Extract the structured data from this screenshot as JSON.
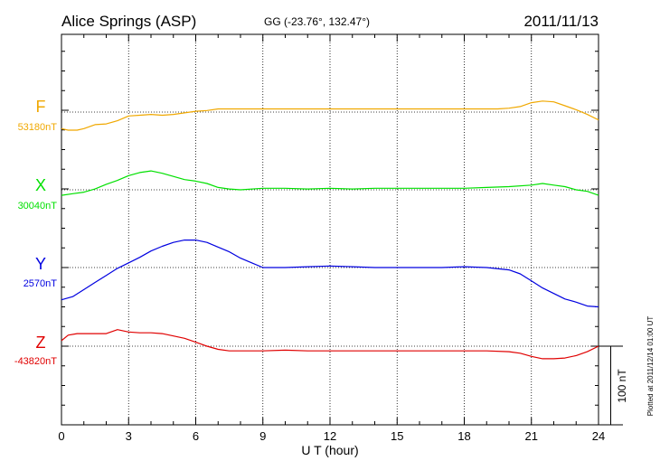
{
  "header": {
    "station": "Alice Springs (ASP)",
    "coords": "GG (-23.76°, 132.47°)",
    "date": "2011/11/13"
  },
  "footer": {
    "plotted": "Plotted at 2011/12/14 01:00 UT"
  },
  "chart_data": {
    "type": "line",
    "title": "Alice Springs (ASP)",
    "subtitle": "GG (-23.76°, 132.47°)",
    "date": "2011/11/13",
    "xlabel": "U T (hour)",
    "xlim": [
      0,
      24
    ],
    "xticks": [
      "0",
      "3",
      "6",
      "9",
      "12",
      "15",
      "18",
      "21",
      "24"
    ],
    "grid": true,
    "scale_bar_label": "100 nT",
    "scale_bar_nT": 100,
    "series": [
      {
        "name": "F",
        "baseline_label": "53180nT",
        "baseline_nT": 53180,
        "color": "#f0a800",
        "x": [
          0,
          0.3,
          0.7,
          1,
          1.5,
          2,
          2.5,
          3,
          3.5,
          4,
          4.5,
          5,
          5.5,
          6,
          6.5,
          7,
          8,
          9,
          10,
          11,
          12,
          13,
          14,
          15,
          16,
          17,
          18,
          19,
          19.5,
          20,
          20.5,
          21,
          21.5,
          22,
          22.5,
          23,
          23.5,
          24
        ],
        "values": [
          -21,
          -23,
          -23,
          -21,
          -16,
          -15,
          -11,
          -5,
          -4,
          -3,
          -4,
          -3,
          -1,
          1,
          2,
          4,
          4,
          4,
          4,
          4,
          4,
          4,
          4,
          4,
          4,
          4,
          4,
          4,
          4,
          5,
          7,
          12,
          14,
          13,
          8,
          3,
          -3,
          -10
        ]
      },
      {
        "name": "X",
        "baseline_label": "30040nT",
        "baseline_nT": 30040,
        "color": "#00e000",
        "x": [
          0,
          0.5,
          1,
          1.5,
          2,
          2.5,
          3,
          3.5,
          4,
          4.5,
          5,
          5.5,
          6,
          6.5,
          7,
          7.5,
          8,
          9,
          10,
          11,
          12,
          13,
          14,
          15,
          16,
          17,
          18,
          19,
          20,
          21,
          21.5,
          22,
          22.5,
          23,
          23.5,
          24
        ],
        "values": [
          -7,
          -5,
          -3,
          1,
          7,
          12,
          18,
          22,
          24,
          21,
          17,
          13,
          11,
          8,
          3,
          1,
          0,
          2,
          2,
          1,
          2,
          1,
          2,
          2,
          2,
          2,
          2,
          3,
          4,
          6,
          8,
          6,
          4,
          0,
          -2,
          -7
        ]
      },
      {
        "name": "Y",
        "baseline_label": "2570nT",
        "baseline_nT": 2570,
        "color": "#0000e0",
        "x": [
          0,
          0.5,
          1,
          1.5,
          2,
          2.5,
          3,
          3.5,
          4,
          4.5,
          5,
          5.5,
          6,
          6.5,
          7,
          7.5,
          8,
          8.5,
          9,
          10,
          11,
          12,
          13,
          14,
          15,
          16,
          17,
          18,
          19,
          20,
          20.5,
          21,
          21.5,
          22,
          22.5,
          23,
          23.5,
          24
        ],
        "values": [
          -41,
          -37,
          -28,
          -19,
          -10,
          -1,
          6,
          13,
          21,
          27,
          32,
          35,
          35,
          32,
          26,
          20,
          12,
          6,
          0,
          0,
          1,
          2,
          1,
          0,
          0,
          0,
          0,
          1,
          0,
          -3,
          -8,
          -17,
          -26,
          -33,
          -40,
          -44,
          -49,
          -50
        ]
      },
      {
        "name": "Z",
        "baseline_label": "-43820nT",
        "baseline_nT": -43820,
        "color": "#e00000",
        "x": [
          0,
          0.3,
          0.7,
          1,
          1.5,
          2,
          2.5,
          3,
          3.5,
          4,
          4.5,
          5,
          5.5,
          6,
          6.5,
          7,
          7.5,
          8,
          9,
          10,
          11,
          12,
          13,
          14,
          15,
          16,
          17,
          18,
          19,
          20,
          20.5,
          21,
          21.5,
          22,
          22.5,
          23,
          23.5,
          24
        ],
        "values": [
          7,
          14,
          16,
          16,
          16,
          16,
          21,
          18,
          17,
          17,
          16,
          13,
          10,
          5,
          0,
          -4,
          -6,
          -6,
          -6,
          -5,
          -6,
          -6,
          -6,
          -6,
          -6,
          -6,
          -6,
          -6,
          -6,
          -7,
          -9,
          -13,
          -16,
          -16,
          -15,
          -12,
          -7,
          0
        ]
      }
    ]
  }
}
